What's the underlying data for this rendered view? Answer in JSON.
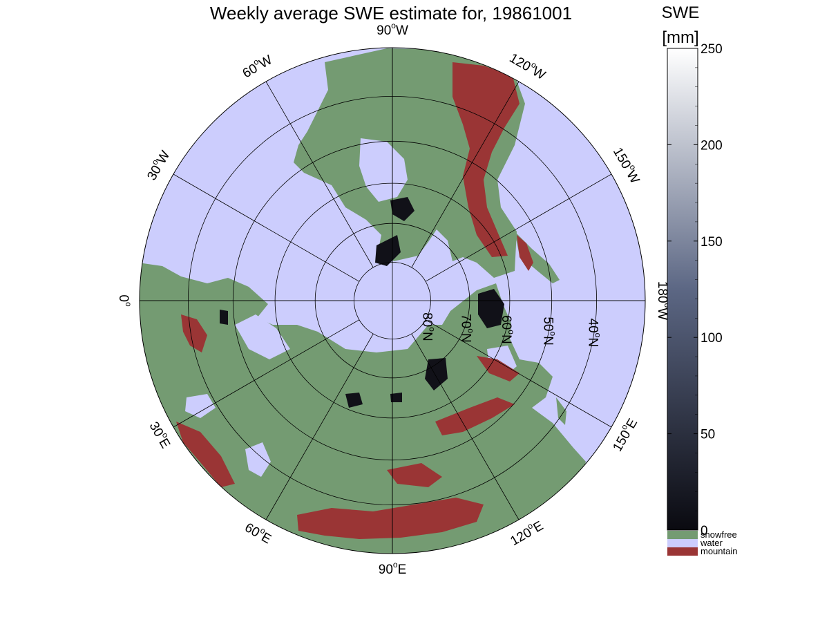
{
  "title": "Weekly average SWE estimate for, 19861001",
  "colorbar": {
    "label_line1": "SWE",
    "label_line2": "[mm]",
    "min": 0,
    "max": 250,
    "ticks": [
      "0",
      "50",
      "100",
      "150",
      "200",
      "250"
    ],
    "tick_values": [
      0,
      50,
      100,
      150,
      200,
      250
    ],
    "gradient_low": "#0a0a10",
    "gradient_mid": "#5c6784",
    "gradient_high": "#ffffff",
    "categories": [
      {
        "label": "snowfree",
        "color": "#749b72"
      },
      {
        "label": "water",
        "color": "#cccdfd"
      },
      {
        "label": "mountain",
        "color": "#9a3535"
      }
    ]
  },
  "map": {
    "projection": "north polar stereographic",
    "colors": {
      "water": "#cccdfd",
      "land": "#749b72",
      "mountain": "#9a3535",
      "snow": "#111118",
      "border": "#000000"
    },
    "longitude_labels": [
      {
        "text": "90°W",
        "main": "90",
        "deg": "o",
        "dir": "W",
        "lon": -90
      },
      {
        "text": "120°W",
        "main": "120",
        "deg": "o",
        "dir": "W",
        "lon": -120
      },
      {
        "text": "150°W",
        "main": "150",
        "deg": "o",
        "dir": "W",
        "lon": -150
      },
      {
        "text": "180°W",
        "main": "180",
        "deg": "o",
        "dir": "W",
        "lon": 180
      },
      {
        "text": "150°E",
        "main": "150",
        "deg": "o",
        "dir": "E",
        "lon": 150
      },
      {
        "text": "120°E",
        "main": "120",
        "deg": "o",
        "dir": "E",
        "lon": 120
      },
      {
        "text": "90°E",
        "main": "90",
        "deg": "o",
        "dir": "E",
        "lon": 90
      },
      {
        "text": "60°E",
        "main": "60",
        "deg": "o",
        "dir": "E",
        "lon": 60
      },
      {
        "text": "30°E",
        "main": "30",
        "deg": "o",
        "dir": "E",
        "lon": 30
      },
      {
        "text": "0°",
        "main": "0",
        "deg": "o",
        "dir": "",
        "lon": 0
      },
      {
        "text": "30°W",
        "main": "30",
        "deg": "o",
        "dir": "W",
        "lon": -30
      },
      {
        "text": "60°W",
        "main": "60",
        "deg": "o",
        "dir": "W",
        "lon": -60
      }
    ],
    "latitude_labels": [
      {
        "text": "80°N",
        "main": "80",
        "deg": "o",
        "dir": "N",
        "lat": 80
      },
      {
        "text": "70°N",
        "main": "70",
        "deg": "o",
        "dir": "N",
        "lat": 70
      },
      {
        "text": "60°N",
        "main": "60",
        "deg": "o",
        "dir": "N",
        "lat": 60
      },
      {
        "text": "50°N",
        "main": "50",
        "deg": "o",
        "dir": "N",
        "lat": 50
      },
      {
        "text": "40°N",
        "main": "40",
        "deg": "o",
        "dir": "N",
        "lat": 40
      }
    ]
  }
}
